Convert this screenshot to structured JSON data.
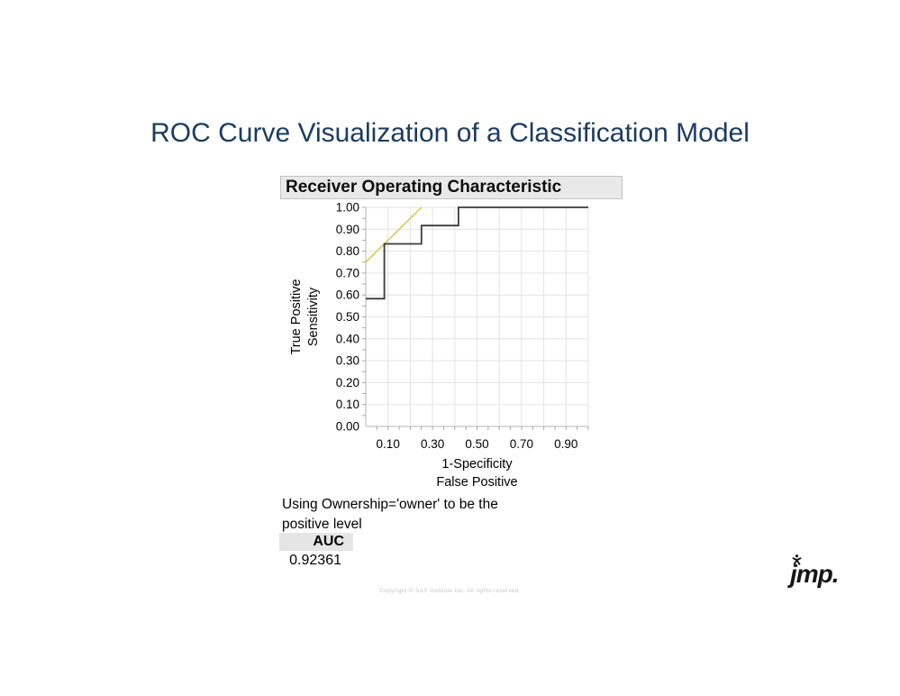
{
  "slide": {
    "title": "ROC Curve Visualization of a Classification Model",
    "copyright": "Copyright © SAS Institute Inc. All rights reserved.",
    "logo": {
      "text": "jmp.",
      "icon": "jmp-person-icon"
    }
  },
  "report": {
    "header_title": "Receiver Operating Characteristic",
    "positive_level_note_line1": "Using Ownership='owner' to be the",
    "positive_level_note_line2": "positive level",
    "auc_table": {
      "header": "AUC",
      "value": "0.92361"
    }
  },
  "chart_data": {
    "type": "line",
    "title": "Receiver Operating Characteristic",
    "xlabel": [
      "1-Specificity",
      "False Positive"
    ],
    "ylabel": [
      "True Positive",
      "Sensitivity"
    ],
    "xlim": [
      0,
      1
    ],
    "ylim": [
      0,
      1
    ],
    "x_tick_labels": [
      "0.10",
      "0.30",
      "0.50",
      "0.70",
      "0.90"
    ],
    "y_tick_labels": [
      "0.00",
      "0.10",
      "0.20",
      "0.30",
      "0.40",
      "0.50",
      "0.60",
      "0.70",
      "0.80",
      "0.90",
      "1.00"
    ],
    "grid": true,
    "grid_step": 0.1,
    "minor_tick_step": 0.05,
    "legend": "none",
    "auc": 0.92361,
    "series": [
      {
        "name": "tangent-reference-line",
        "type": "line",
        "color": "#d6ca45",
        "width": 1.5,
        "points": [
          [
            0,
            0.75
          ],
          [
            0.25,
            1.0
          ]
        ]
      },
      {
        "name": "roc-curve-line",
        "type": "step",
        "color": "#3a3a3a",
        "width": 1.8,
        "points": [
          [
            0,
            0.5833
          ],
          [
            0.0833,
            0.5833
          ],
          [
            0.0833,
            0.8333
          ],
          [
            0.25,
            0.8333
          ],
          [
            0.25,
            0.9167
          ],
          [
            0.4167,
            0.9167
          ],
          [
            0.4167,
            1.0
          ],
          [
            1.0,
            1.0
          ]
        ]
      }
    ],
    "colors": {
      "grid": "#e3e3e3",
      "axis": "#b4b4b4",
      "tick": "#a8a8a8",
      "text": "#000000"
    }
  },
  "colors": {
    "page_bg": "#ffffff",
    "title_text": "#1c3c60",
    "report_header_bg": "#e9e9e9",
    "report_header_border": "#c3c3c3",
    "auc_header_bg": "#e5e5e5",
    "copyright_text": "#c7c5c2",
    "logo_black": "#161616"
  }
}
